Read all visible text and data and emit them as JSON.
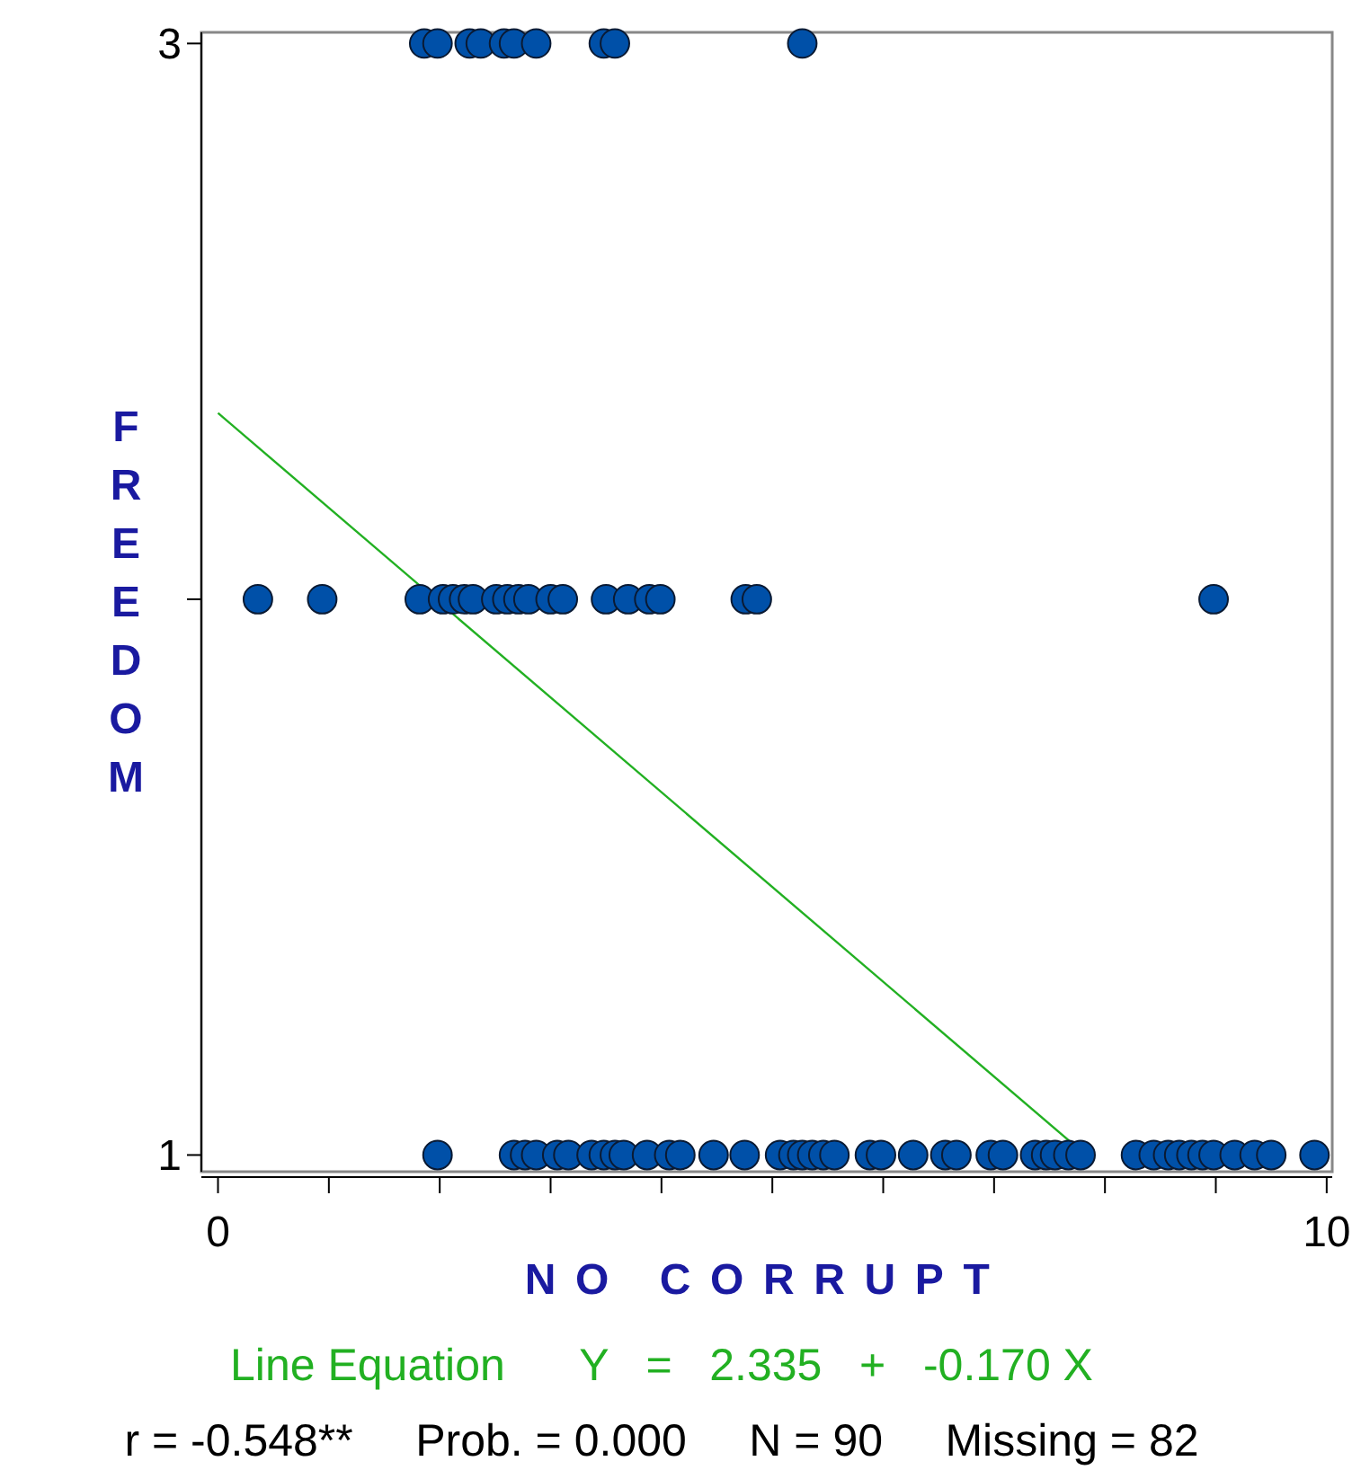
{
  "chart_data": {
    "type": "scatter",
    "xlabel": "NO CORRUPT",
    "ylabel": "FREEDOM",
    "xlim": [
      -0.15,
      10.05
    ],
    "ylim": [
      0.97,
      3.02
    ],
    "xticks": [
      0,
      {
        "value": 1,
        "label": null
      },
      {
        "value": 2,
        "label": null
      },
      {
        "value": 3,
        "label": null
      },
      {
        "value": 4,
        "label": null
      },
      {
        "value": 5,
        "label": null
      },
      {
        "value": 6,
        "label": null
      },
      {
        "value": 7,
        "label": null
      },
      {
        "value": 8,
        "label": null
      },
      {
        "value": 9,
        "label": null
      },
      10
    ],
    "yticks": [
      1,
      {
        "value": 2,
        "label": null
      },
      3
    ],
    "series": [
      {
        "marker": "circle",
        "color": "#0050a8",
        "x": [
          1.86,
          1.98,
          2.27,
          2.37,
          2.58,
          2.67,
          2.87,
          3.48,
          3.58,
          5.27,
          0.36,
          0.94,
          1.82,
          2.03,
          2.12,
          2.22,
          2.3,
          2.51,
          2.61,
          2.71,
          2.8,
          3.0,
          3.11,
          3.5,
          3.7,
          3.89,
          3.99,
          4.76,
          4.86,
          8.98,
          1.98,
          2.67,
          2.77,
          2.87,
          3.06,
          3.16,
          3.37,
          3.48,
          3.58,
          3.66,
          3.87,
          4.07,
          4.17,
          4.47,
          4.75,
          5.07,
          5.19,
          5.27,
          5.36,
          5.46,
          5.56,
          5.88,
          5.98,
          6.27,
          6.56,
          6.66,
          6.97,
          7.08,
          7.37,
          7.47,
          7.55,
          7.67,
          7.78,
          8.28,
          8.44,
          8.57,
          8.67,
          8.78,
          8.88,
          8.98,
          9.17,
          9.35,
          9.5,
          9.89
        ],
        "values": [
          3,
          3,
          3,
          3,
          3,
          3,
          3,
          3,
          3,
          3,
          2,
          2,
          2,
          2,
          2,
          2,
          2,
          2,
          2,
          2,
          2,
          2,
          2,
          2,
          2,
          2,
          2,
          2,
          2,
          2,
          1,
          1,
          1,
          1,
          1,
          1,
          1,
          1,
          1,
          1,
          1,
          1,
          1,
          1,
          1,
          1,
          1,
          1,
          1,
          1,
          1,
          1,
          1,
          1,
          1,
          1,
          1,
          1,
          1,
          1,
          1,
          1,
          1,
          1,
          1,
          1,
          1,
          1,
          1,
          1,
          1,
          1,
          1,
          1
        ]
      },
      {
        "type": "line",
        "color": "#22b022",
        "x": [
          0,
          7.71
        ],
        "values": [
          2.335,
          1.02
        ]
      }
    ],
    "annotations": [
      "Line Equation      Y   =   2.335   +   -0.170 X",
      "r = -0.548**     Prob. = 0.000     N = 90     Missing = 82"
    ]
  }
}
